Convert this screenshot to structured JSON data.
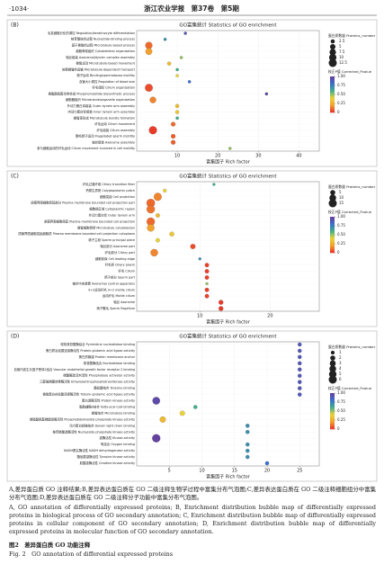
{
  "header": {
    "page": "·1034·",
    "journal": "浙江农业学报　第37卷　第5期"
  },
  "chart_data": [
    {
      "type": "bubble",
      "panel": "(B)",
      "title": "GO富集统计 Statistics of GO enrichment",
      "x_label": "富集因子 Rich factor",
      "categories": [
        "毛发细胞分化的调控 Regulation/keratinocyte differentiation",
        "核苷酸结合过程 Nucleotide-binding process",
        "基于微管的过程 Microtubule-based process",
        "细胞骨架组织 Cytoskeleton organization",
        "轴丝组装 Axonemal/dynein complex assembly",
        "微管运动 Microtubule-based movement",
        "依赖微管的运输 Microtubule-dependent transport",
        "精子运动 Binding/spermatozoa motility",
        "血管大小调控 Regulation of blood size",
        "纤毛组织 Cilium organization",
        "磷脂酰肌醇生物合成 Phosphoinositide biosynthetic process",
        "细胞器组织 Microtubule/organelle organization",
        "外动力蛋白臂组装 Outer dynein arm assembly",
        "内动力蛋白臂组装 Inner dynein arm assembly",
        "微管束形成 Microtubule bundle formation",
        "纤毛运动 Cilium movement",
        "纤毛组装 Cilium assembly",
        "鞭毛精子运动 Flagellated sperm motility",
        "轴丝组装 Axoneme assembly",
        "参与细胞运动的纤毛运动 Cilium movement involved in cell motility"
      ],
      "values": [
        12,
        7,
        3,
        3,
        11,
        8,
        10,
        10,
        13,
        3,
        32,
        4,
        10,
        10,
        10,
        9,
        4,
        9,
        9,
        23
      ],
      "sizes": [
        1,
        1,
        9,
        8,
        1,
        2,
        1,
        1,
        1,
        11,
        1,
        7,
        2,
        2,
        1,
        3,
        12,
        3,
        3,
        1
      ],
      "pvalues": [
        0.9,
        0.7,
        0.1,
        0.2,
        0.5,
        0.3,
        0.6,
        0.4,
        0.8,
        0.05,
        0.95,
        0.15,
        0.3,
        0.35,
        0.6,
        0.1,
        0.02,
        0.08,
        0.08,
        0.5
      ],
      "xlim": [
        0,
        45
      ],
      "xticks": [
        10,
        20,
        30,
        40
      ],
      "size_legend": {
        "title": "蛋白质数量 Proteins_number",
        "values": [
          2.5,
          5,
          7.5,
          10,
          12.5
        ]
      },
      "color_legend": {
        "title": "校正P值 Corrected_Pvalue",
        "lim": [
          0,
          1
        ],
        "ticks": [
          {
            "value": 1,
            "label": "1.00"
          },
          {
            "value": 0.75,
            "label": "0.75"
          },
          {
            "value": 0.5,
            "label": "0.50"
          },
          {
            "value": 0.25,
            "label": "0.25"
          },
          0
        ]
      },
      "colorscale": [
        "#e8302a",
        "#f2a12e",
        "#e8d33a",
        "#3fae8a",
        "#3b6fd0",
        "#6a3d9a"
      ]
    },
    {
      "type": "bubble",
      "panel": "(C)",
      "title": "GO富集统计 Statistics of GO enrichment",
      "x_label": "富集因子 Rich factor",
      "categories": [
        "纤毛过渡纤维 Ciliary transition fiber",
        "钙原生质斑 Calyptoplasmic patch",
        "细胞突起 Cell projection",
        "质膜界限细胞突起部分 Plasma membrane bounded cell projection part",
        "细胞质区域 Cytoplasmic region",
        "外动力蛋白臂 Outer dynein arm",
        "质膜界限细胞突起 Plasma membrane bounded cell projection",
        "微管细胞骨架 Microtubule cytoskeleton",
        "质膜界限细胞突起细胞质 Plasma membrane bounded cell projection cytoplasm",
        "精子主段 Sperm principal piece",
        "轴丝部分 Axoneme part",
        "纤毛部分 Ciliary part",
        "细胞前缘 Cell leading edge",
        "纤毛质 Ciliary plasm",
        "纤毛 Cilium",
        "精子部分 Sperm part",
        "轴丝中央装置 Axonemal central apparatus",
        "9+2运动纤毛 9+2 motile cilium",
        "运动纤毛 Motile cilium",
        "轴丝 Axoneme",
        "精子鞭毛 Sperm flagellum"
      ],
      "values": [
        12,
        5,
        4,
        3,
        3,
        4,
        3,
        3,
        6,
        4,
        9,
        3.5,
        10,
        11,
        11,
        11,
        11,
        11,
        11,
        13,
        13
      ],
      "sizes": [
        1,
        2,
        14,
        16,
        15,
        3,
        15,
        12,
        4,
        3,
        5,
        12,
        1,
        3,
        3,
        3,
        1,
        3,
        3,
        4,
        4
      ],
      "pvalues": [
        0.6,
        0.4,
        0.15,
        0.1,
        0.12,
        0.3,
        0.1,
        0.2,
        0.35,
        0.4,
        0.05,
        0.15,
        0.7,
        0.03,
        0.03,
        0.03,
        0.5,
        0.03,
        0.03,
        0.02,
        0.02
      ],
      "xlim": [
        1,
        27
      ],
      "xticks": [
        10,
        20
      ],
      "size_legend": {
        "title": "蛋白质数量 Proteins_number",
        "values": [
          5,
          10,
          15
        ]
      },
      "color_legend": {
        "title": "校正P值 Corrected_Pvalue",
        "lim": [
          0,
          1
        ],
        "ticks": [
          {
            "value": 1,
            "label": "1.00"
          },
          {
            "value": 0.75,
            "label": "0.75"
          },
          {
            "value": 0.5,
            "label": "0.50"
          },
          {
            "value": 0.25,
            "label": "0.25"
          },
          0
        ]
      },
      "colorscale": [
        "#e8302a",
        "#f2a12e",
        "#e8d33a",
        "#3fae8a",
        "#3b6fd0",
        "#6a3d9a"
      ]
    },
    {
      "type": "bubble",
      "panel": "(D)",
      "title": "GO富集统计 Statistics of GO enrichment",
      "x_label": "富集因子 Rich factor",
      "categories": [
        "嘧啶核苷酸酶结合 Pyrimidine nucleotidase binding",
        "蛋白质谷氨酸连接酶活性 Protein-glutamic acid ligase activity",
        "蛋白质膜锚 Protein membrane anchor",
        "核苷酸酶结合 Nucleotidase binding",
        "血管内皮生长因子受体2结合 Vascular endothelial growth factor receptor 2 binding",
        "磷酸酶激活剂活性 Phosphatase activator activity",
        "乙醇胺磷酸转移酶活性 Ethanolaminephosphotransferase activity",
        "酪氨酸结合 Tyrosine binding",
        "微管蛋白谷氨酸连接酶活性 Tubulin-glutamic acid ligase activity",
        "蛋白激酶活性 Protein kinase activity",
        "脂酰辅酶A结合 Fatty-acyl-CoA binding",
        "微管结合 Microtubule binding",
        "磷脂酰肌醇磷酸激酶活性 Phosphatidylinositol phosphate kinase activity",
        "动力蛋白轻链结合 Dynein light chain binding",
        "核苷磷酸激酶活性 Nucleoside phosphate kinase activity",
        "激酶活性 Kinase activity",
        "氧结合 Oxygen binding",
        "NADH脱氢酶活性 NADH dehydrogenase activity",
        "酪氨酸激酶活性 Tyrosine kinase activity",
        "肌酸激酶活性 Creatine kinase activity"
      ],
      "values": [
        25,
        25,
        25,
        25,
        25,
        25,
        25,
        25,
        25,
        3,
        9,
        7,
        4,
        17,
        17,
        3,
        17,
        17,
        17,
        20
      ],
      "sizes": [
        1,
        1,
        1,
        1,
        1,
        1,
        1,
        1,
        1,
        5,
        1,
        2,
        3,
        1,
        1,
        6,
        1,
        1,
        1,
        1
      ],
      "pvalues": [
        0.9,
        0.9,
        0.9,
        0.9,
        0.9,
        0.9,
        0.9,
        0.9,
        0.9,
        0.95,
        0.6,
        0.4,
        0.3,
        0.7,
        0.7,
        0.98,
        0.7,
        0.7,
        0.7,
        0.8
      ],
      "xlim": [
        0,
        28
      ],
      "xticks": [
        5,
        10,
        15,
        20,
        25
      ],
      "size_legend": {
        "title": "蛋白质数量 Proteins_number",
        "values": [
          1,
          2,
          3,
          4,
          5,
          6
        ]
      },
      "color_legend": {
        "title": "校正P值 Corrected_Pvalue",
        "lim": [
          0,
          1
        ],
        "ticks": [
          {
            "value": 1,
            "label": "1.00"
          },
          {
            "value": 0.75,
            "label": "0.75"
          },
          {
            "value": 0.5,
            "label": "0.50"
          },
          {
            "value": 0.25,
            "label": "0.25"
          },
          0
        ]
      },
      "colorscale": [
        "#e8302a",
        "#f2a12e",
        "#e8d33a",
        "#3fae8a",
        "#3b6fd0",
        "#6a3d9a"
      ]
    }
  ],
  "caption": {
    "zh": "A,差异蛋白质 GO 注释结果;B,差异表达蛋白质在 GO 二级注释生物学过程中富集分布气泡图;C,差异表达蛋白质在 GO 二级注释细胞组分中富集分布气泡图;D,差异表达蛋白质在 GO 二级注释分子功能中富集分布气泡图。",
    "en": "A, GO annotation of differentially expressed proteins; B, Enrichment distribution bubble map of differentially expressed proteins in biological process of GO secondary annotation; C, Enrichment distribution bubble map of differentially expressed proteins in cellular component of GO secondary annotation; D, Enrichment distribution bubble map of differentially expressed proteins in molecular function of GO secondary annotation.",
    "figure_zh": "图2　差异蛋白质 GO 功能注释",
    "figure_en": "Fig. 2　GO annotation of differential expressed proteins"
  }
}
